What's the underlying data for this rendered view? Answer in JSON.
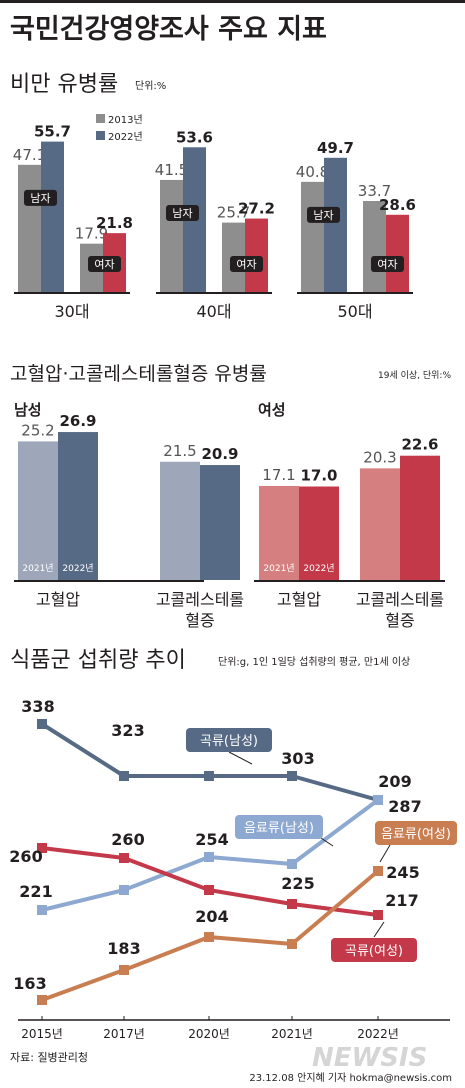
{
  "header": {
    "title": "국민건강영양조사 주요 지표"
  },
  "obesity": {
    "title": "비만 유병률",
    "unit": "단위:%",
    "legend": [
      "2013년",
      "2022년"
    ],
    "sex_labels": {
      "male": "남자",
      "female": "여자"
    },
    "age_labels": [
      "30대",
      "40대",
      "50대"
    ]
  },
  "hyper": {
    "title": "고혈압·고콜레스테롤혈증 유병률",
    "unit": "19세 이상, 단위:%",
    "male_label": "남성",
    "female_label": "여성",
    "year_labels": [
      "2021년",
      "2022년"
    ],
    "cat_line1": [
      "고혈압",
      "고콜레스테롤"
    ],
    "cat_line2": [
      "",
      "혈증"
    ]
  },
  "food": {
    "title": "식품군 섭취량 추이",
    "unit": "단위:g, 1인 1일당 섭취량의 평균, 만1세 이상"
  },
  "footer": {
    "source": "자료: 질병관리청",
    "credit": "23.12.08 안지혜 기자 hokma@newsis.com",
    "logo": "NEWSIS"
  },
  "colors": {
    "gray": "#8e8e8e",
    "navy": "#566a86",
    "red": "#c4394a",
    "light_blue": "#8da9d1",
    "orange": "#c97e52",
    "male_2021": "#9ea6ba",
    "female_2021": "#d67f80"
  },
  "chart_data": [
    {
      "type": "bar",
      "title": "비만 유병률",
      "unit": "단위:%",
      "categories": [
        "30대",
        "40대",
        "50대"
      ],
      "series": [
        {
          "name": "2013년",
          "group": "남자",
          "values": [
            47.1,
            41.5,
            40.8
          ]
        },
        {
          "name": "2022년",
          "group": "남자",
          "values": [
            55.7,
            53.6,
            49.7
          ]
        },
        {
          "name": "2013년",
          "group": "여자",
          "values": [
            17.9,
            25.7,
            33.7
          ]
        },
        {
          "name": "2022년",
          "group": "여자",
          "values": [
            21.8,
            27.2,
            28.6
          ]
        }
      ]
    },
    {
      "type": "bar",
      "title": "고혈압·고콜레스테롤혈증 유병률",
      "unit": "19세 이상, 단위:%",
      "categories": [
        "고혈압",
        "고콜레스테롤혈증"
      ],
      "series": [
        {
          "name": "2021년",
          "group": "남성",
          "values": [
            25.2,
            21.5
          ]
        },
        {
          "name": "2022년",
          "group": "남성",
          "values": [
            26.9,
            20.9
          ]
        },
        {
          "name": "2021년",
          "group": "여성",
          "values": [
            17.1,
            20.3
          ]
        },
        {
          "name": "2022년",
          "group": "여성",
          "values": [
            17.0,
            22.6
          ]
        }
      ]
    },
    {
      "type": "line",
      "title": "식품군 섭취량 추이",
      "unit": "단위:g, 1인 1일당 섭취량의 평균, 만1세 이상",
      "x": [
        "2015년",
        "2017년",
        "2020년",
        "2021년",
        "2022년"
      ],
      "series": [
        {
          "name": "곡류(남성)",
          "values": [
            338,
            323,
            null,
            303,
            209
          ],
          "color": "#566a86"
        },
        {
          "name": "음료류(남성)",
          "values": [
            221,
            null,
            254,
            null,
            287
          ],
          "color": "#8da9d1"
        },
        {
          "name": "곡류(여성)",
          "values": [
            260,
            260,
            null,
            225,
            217
          ],
          "color": "#c4394a"
        },
        {
          "name": "음료류(여성)",
          "values": [
            163,
            183,
            204,
            null,
            245
          ],
          "color": "#c97e52"
        }
      ]
    }
  ]
}
